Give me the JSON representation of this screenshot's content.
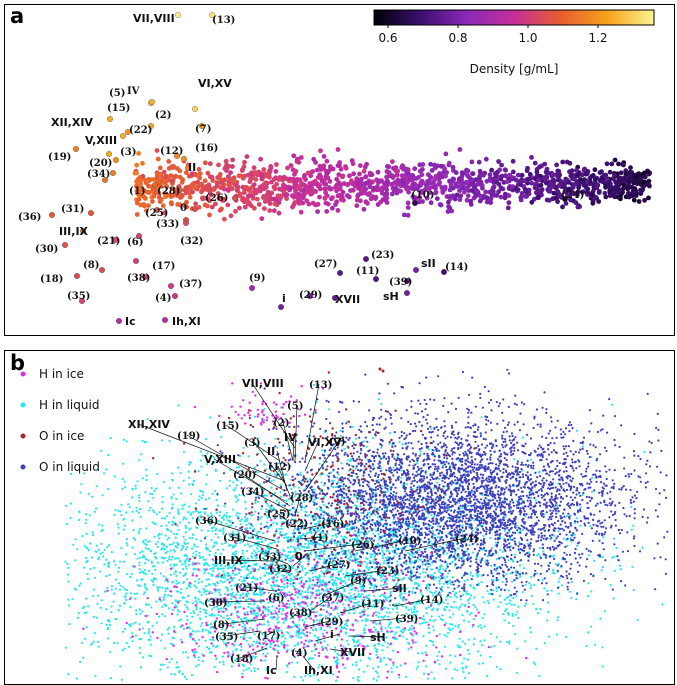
{
  "chart_data": [
    {
      "panel": "a",
      "type": "scatter",
      "title": "",
      "colorbar": {
        "label": "Density [g/mL]",
        "ticks": [
          "0.6",
          "0.8",
          "1.0",
          "1.2"
        ],
        "tick_values": [
          0.6,
          0.8,
          1.0,
          1.2
        ],
        "range": [
          0.56,
          1.36
        ],
        "colormap": [
          "#000004",
          "#3b0f70",
          "#8c29b8",
          "#c62f9a",
          "#e85d2f",
          "#f7a21b",
          "#fcf393"
        ]
      },
      "phases": [
        {
          "label": "VII,VIII",
          "density": 1.35
        },
        {
          "label": "(13)",
          "density": 1.33
        },
        {
          "label": "IV",
          "density": 1.27
        },
        {
          "label": "VI,XV",
          "density": 1.31
        },
        {
          "label": "(5)",
          "density": 1.25
        },
        {
          "label": "(2)",
          "density": 1.24
        },
        {
          "label": "(15)",
          "density": 1.24
        },
        {
          "label": "(22)",
          "density": 1.2
        },
        {
          "label": "(7)",
          "density": 1.22
        },
        {
          "label": "XII,XIV",
          "density": 1.25
        },
        {
          "label": "V,XIII",
          "density": 1.23
        },
        {
          "label": "(16)",
          "density": 1.18
        },
        {
          "label": "(12)",
          "density": 1.17
        },
        {
          "label": "II",
          "density": 1.17
        },
        {
          "label": "(3)",
          "density": 1.18
        },
        {
          "label": "(19)",
          "density": 1.16
        },
        {
          "label": "(20)",
          "density": 1.16
        },
        {
          "label": "(34)",
          "density": 1.13
        },
        {
          "label": "(1)",
          "density": 1.11
        },
        {
          "label": "(28)",
          "density": 1.1
        },
        {
          "label": "0",
          "density": 1.05
        },
        {
          "label": "(26)",
          "density": 1.05
        },
        {
          "label": "(25)",
          "density": 1.06
        },
        {
          "label": "(33)",
          "density": 1.07
        },
        {
          "label": "(32)",
          "density": 1.04
        },
        {
          "label": "(36)",
          "density": 1.08
        },
        {
          "label": "(31)",
          "density": 1.07
        },
        {
          "label": "III,IX",
          "density": 1.16
        },
        {
          "label": "(30)",
          "density": 1.06
        },
        {
          "label": "(21)",
          "density": 1.03
        },
        {
          "label": "(6)",
          "density": 1.02
        },
        {
          "label": "(8)",
          "density": 1.04
        },
        {
          "label": "(17)",
          "density": 1.01
        },
        {
          "label": "(18)",
          "density": 1.05
        },
        {
          "label": "(38)",
          "density": 1.0
        },
        {
          "label": "(37)",
          "density": 0.99
        },
        {
          "label": "(35)",
          "density": 1.02
        },
        {
          "label": "(4)",
          "density": 0.98
        },
        {
          "label": "Ic",
          "density": 0.92
        },
        {
          "label": "Ih,XI",
          "density": 0.92
        },
        {
          "label": "(9)",
          "density": 0.86
        },
        {
          "label": "i",
          "density": 0.78
        },
        {
          "label": "(29)",
          "density": 0.77
        },
        {
          "label": "XVII",
          "density": 0.75
        },
        {
          "label": "(27)",
          "density": 0.74
        },
        {
          "label": "(23)",
          "density": 0.74
        },
        {
          "label": "(11)",
          "density": 0.72
        },
        {
          "label": "sII",
          "density": 0.79
        },
        {
          "label": "(39)",
          "density": 0.72
        },
        {
          "label": "sH",
          "density": 0.78
        },
        {
          "label": "(14)",
          "density": 0.7
        },
        {
          "label": "(10)",
          "density": 0.66
        },
        {
          "label": "(24)",
          "density": 0.62
        }
      ]
    },
    {
      "panel": "b",
      "type": "scatter",
      "title": "",
      "legend": [
        {
          "name": "H in ice",
          "color": "#e22ee2"
        },
        {
          "name": "H in liquid",
          "color": "#22e7ee"
        },
        {
          "name": "O in ice",
          "color": "#a8232a"
        },
        {
          "name": "O in liquid",
          "color": "#3e3fbd"
        }
      ],
      "phase_labels": [
        "VII,VIII",
        "(13)",
        "(5)",
        "(2)",
        "(15)",
        "IV",
        "VI,XV",
        "XII,XIV",
        "(19)",
        "(3)",
        "II",
        "(7)",
        "V,XIII",
        "(12)",
        "(20)",
        "(34)",
        "(28)",
        "(25)",
        "(22)",
        "(16)",
        "(1)",
        "(36)",
        "(31)",
        "(26)",
        "(10)",
        "(24)",
        "III,IX",
        "(33)",
        "0",
        "(32)",
        "(27)",
        "(23)",
        "(9)",
        "(21)",
        "sII",
        "(30)",
        "(6)",
        "(37)",
        "(11)",
        "(14)",
        "(8)",
        "(38)",
        "(39)",
        "(29)",
        "(35)",
        "(17)",
        "sH",
        "i",
        "XVII",
        "(18)",
        "Ic",
        "(4)",
        "Ih,XI"
      ]
    }
  ],
  "panels": {
    "a": "a",
    "b": "b"
  }
}
